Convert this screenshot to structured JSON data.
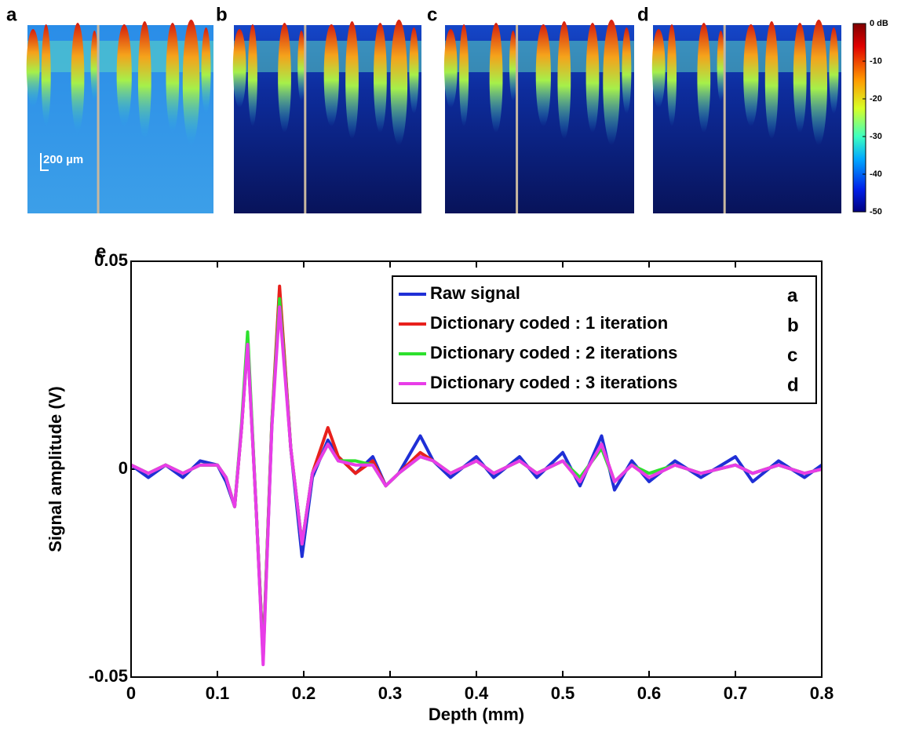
{
  "panels": [
    "a",
    "b",
    "c",
    "d"
  ],
  "scale_bar": "200 µm",
  "colorbar": {
    "lim": [
      -50,
      0
    ],
    "ticks": [
      {
        "value": 0,
        "label": "0 dB"
      },
      -10,
      -20,
      -30,
      -40,
      -50
    ]
  },
  "chart_data": {
    "type": "line",
    "panel_label": "e",
    "xlabel": "Depth (mm)",
    "ylabel": "Signal amplitude (V)",
    "xlim": [
      0,
      0.8
    ],
    "ylim": [
      -0.05,
      0.05
    ],
    "xticks": [
      0,
      0.1,
      0.2,
      0.3,
      0.4,
      0.5,
      0.6,
      0.7,
      0.8
    ],
    "yticks": [
      -0.05,
      0,
      0.05
    ],
    "legend_panels": [
      "a",
      "b",
      "c",
      "d"
    ],
    "x": [
      0,
      0.02,
      0.04,
      0.06,
      0.08,
      0.1,
      0.11,
      0.12,
      0.128,
      0.135,
      0.145,
      0.153,
      0.163,
      0.172,
      0.185,
      0.198,
      0.21,
      0.228,
      0.24,
      0.26,
      0.28,
      0.295,
      0.31,
      0.335,
      0.35,
      0.37,
      0.4,
      0.42,
      0.45,
      0.47,
      0.5,
      0.52,
      0.545,
      0.56,
      0.58,
      0.6,
      0.63,
      0.66,
      0.7,
      0.72,
      0.75,
      0.78,
      0.8
    ],
    "series": [
      {
        "name": "Raw signal",
        "color": "#1f2fd6",
        "values": [
          0.001,
          -0.002,
          0.001,
          -0.002,
          0.002,
          0.001,
          -0.003,
          -0.009,
          0.01,
          0.031,
          -0.01,
          -0.045,
          0.01,
          0.043,
          0.005,
          -0.021,
          -0.002,
          0.007,
          0.003,
          -0.001,
          0.003,
          -0.004,
          -0.001,
          0.008,
          0.002,
          -0.002,
          0.003,
          -0.002,
          0.003,
          -0.002,
          0.004,
          -0.004,
          0.008,
          -0.005,
          0.002,
          -0.003,
          0.002,
          -0.002,
          0.003,
          -0.003,
          0.002,
          -0.002,
          0.001
        ]
      },
      {
        "name": "Dictionary coded : 1 iteration",
        "color": "#e8201c",
        "values": [
          0.001,
          -0.001,
          0.001,
          -0.001,
          0.001,
          0.001,
          -0.002,
          -0.009,
          0.01,
          0.031,
          -0.01,
          -0.045,
          0.011,
          0.044,
          0.005,
          -0.018,
          -0.001,
          0.01,
          0.003,
          -0.001,
          0.002,
          -0.004,
          -0.001,
          0.004,
          0.002,
          -0.001,
          0.002,
          -0.001,
          0.002,
          -0.001,
          0.002,
          -0.003,
          0.006,
          -0.003,
          0.001,
          -0.002,
          0.001,
          -0.001,
          0.001,
          -0.001,
          0.001,
          -0.001,
          0
        ]
      },
      {
        "name": "Dictionary coded : 2 iterations",
        "color": "#2de02d",
        "values": [
          0.001,
          -0.001,
          0.001,
          -0.001,
          0.001,
          0.001,
          -0.002,
          -0.009,
          0.011,
          0.033,
          -0.01,
          -0.046,
          0.011,
          0.041,
          0.005,
          -0.018,
          -0.001,
          0.006,
          0.002,
          0.002,
          0.001,
          -0.004,
          -0.001,
          0.003,
          0.002,
          -0.001,
          0.002,
          -0.001,
          0.002,
          -0.001,
          0.002,
          -0.002,
          0.005,
          -0.003,
          0.001,
          -0.001,
          0.001,
          -0.001,
          0.001,
          -0.001,
          0.001,
          -0.001,
          0
        ]
      },
      {
        "name": "Dictionary coded : 3 iterations",
        "color": "#e83ce8",
        "values": [
          0.001,
          -0.001,
          0.001,
          -0.001,
          0.001,
          0.001,
          -0.002,
          -0.009,
          0.01,
          0.03,
          -0.01,
          -0.047,
          0.01,
          0.039,
          0.005,
          -0.018,
          -0.001,
          0.006,
          0.002,
          0.001,
          0.001,
          -0.004,
          -0.001,
          0.003,
          0.002,
          -0.001,
          0.002,
          -0.001,
          0.002,
          -0.001,
          0.002,
          -0.003,
          0.006,
          -0.003,
          0.001,
          -0.002,
          0.001,
          -0.001,
          0.001,
          -0.001,
          0.001,
          -0.001,
          0
        ]
      }
    ]
  }
}
